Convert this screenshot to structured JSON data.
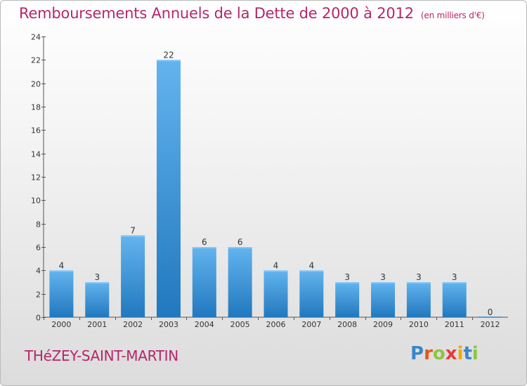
{
  "header": {
    "title": "Remboursements Annuels de la Dette de 2000 à 2012",
    "subtitle": "(en milliers d'€)"
  },
  "footer": {
    "commune": "THéZEY-SAINT-MARTIN",
    "logo_text": "Proxiti"
  },
  "colors": {
    "title": "#b5266b",
    "bar_top": "#63b4ee",
    "bar_bottom": "#2178be"
  },
  "chart_data": {
    "type": "bar",
    "title": "Remboursements Annuels de la Dette de 2000 à 2012",
    "subtitle": "(en milliers d'€)",
    "xlabel": "",
    "ylabel": "",
    "categories": [
      "2000",
      "2001",
      "2002",
      "2003",
      "2004",
      "2005",
      "2006",
      "2007",
      "2008",
      "2009",
      "2010",
      "2011",
      "2012"
    ],
    "values": [
      4,
      3,
      7,
      22,
      6,
      6,
      4,
      4,
      3,
      3,
      3,
      3,
      0
    ],
    "ylim": [
      0,
      24
    ],
    "yticks": [
      0,
      2,
      4,
      6,
      8,
      10,
      12,
      14,
      16,
      18,
      20,
      22,
      24
    ],
    "grid": false,
    "legend": "none"
  }
}
